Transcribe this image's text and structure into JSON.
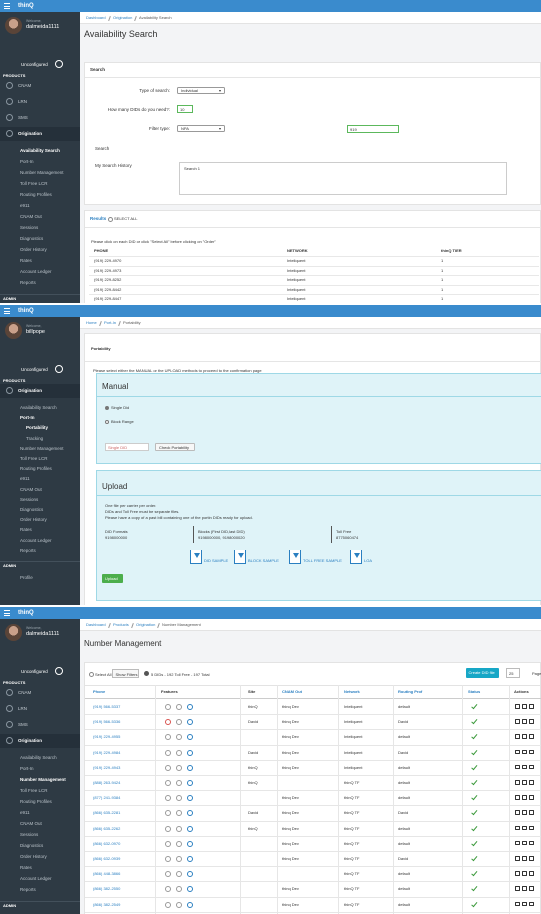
{
  "panels": [
    {
      "topbar": {
        "brand": "thinQ"
      },
      "sidebar": {
        "welcome": "Welcome,",
        "user": "dalmeida1111",
        "status": "Unconfigured",
        "section": "PRODUCTS",
        "menu": [
          "CNAM",
          "LRN",
          "SMS",
          "Origination"
        ],
        "submenu": [
          {
            "label": "Availability Search"
          },
          {
            "label": "Port-In"
          },
          {
            "label": "Number Management"
          },
          {
            "label": "Toll Free LCR"
          },
          {
            "label": "Routing Profiles"
          },
          {
            "label": "e911"
          },
          {
            "label": "CNAM Out"
          },
          {
            "label": "Sessions"
          },
          {
            "label": "Diagnostics"
          },
          {
            "label": "Order History"
          },
          {
            "label": "Rates"
          },
          {
            "label": "Account Ledger"
          },
          {
            "label": "Reports"
          }
        ],
        "admin": "ADMIN"
      },
      "breadcrumb": [
        "Dashboard",
        "Origination",
        "Availability Search"
      ],
      "title": "Availability Search",
      "search": {
        "header": "Search",
        "type_label": "Type of search:",
        "type_value": "Individual",
        "count_label": "How many DIDs do you need?:",
        "count_value": "10",
        "filter_label": "Filter type:",
        "filter_value": "NPA",
        "filter_input": "919",
        "search_label": "Search",
        "history_label": "My Search History",
        "history": [
          "Search 1"
        ]
      },
      "results": {
        "header": "Results",
        "select_all": "SELECT ALL",
        "instruction": "Please click on each DID or click \"Select All\" before clicking on \"Order\"",
        "columns": [
          "PHONE",
          "NETWORK",
          "thinQ TIER"
        ],
        "rows": [
          [
            "(919) 229-4970",
            "Inteliquent",
            "1"
          ],
          [
            "(919) 229-4973",
            "Inteliquent",
            "1"
          ],
          [
            "(919) 229-8252",
            "Inteliquent",
            "1"
          ],
          [
            "(919) 229-8442",
            "Inteliquent",
            "1"
          ],
          [
            "(919) 229-8447",
            "Inteliquent",
            "1"
          ]
        ]
      }
    },
    {
      "topbar": {
        "brand": "thinQ"
      },
      "sidebar": {
        "welcome": "Welcome,",
        "user": "billpope",
        "status": "Unconfigured",
        "section": "PRODUCTS",
        "menu": [
          "Origination"
        ],
        "submenu": [
          {
            "label": "Availability Search"
          },
          {
            "label": "Port-In",
            "items": [
              "Portability",
              "Tracking"
            ]
          },
          {
            "label": "Number Management"
          },
          {
            "label": "Toll Free LCR"
          },
          {
            "label": "Routing Profiles"
          },
          {
            "label": "e911"
          },
          {
            "label": "CNAM Out"
          },
          {
            "label": "Sessions"
          },
          {
            "label": "Diagnostics"
          },
          {
            "label": "Order History"
          },
          {
            "label": "Rates"
          },
          {
            "label": "Account Ledger"
          },
          {
            "label": "Reports"
          }
        ],
        "admin": "ADMIN",
        "profile": "Profile"
      },
      "breadcrumb": [
        "Home",
        "Port-In",
        "Portability"
      ],
      "portability": {
        "header": "Portability",
        "instruction": "Please select either the MANUAL or the UPLOAD methods to proceed to the confirmation page",
        "manual": {
          "title": "Manual",
          "options": [
            "Single Did",
            "Block Range"
          ],
          "placeholder": "Single DID",
          "button": "Check Portability"
        },
        "upload": {
          "title": "Upload",
          "notes": [
            "One file per carrier per order.",
            "DIDs and Toll Free must be separate files.",
            "Please have a copy of a past bill containing one of the portin DIDs ready for upload."
          ],
          "formats": [
            {
              "label": "DID Formats",
              "example": "9198000000"
            },
            {
              "label": "Blocks (First DID,last DID)",
              "example": "9198000000, 9198000020"
            },
            {
              "label": "Toll Free",
              "example": "8775060474"
            }
          ],
          "downloads": [
            "DID SAMPLE",
            "BLOCK SAMPLE",
            "TOLL FREE SAMPLE",
            "LOA"
          ],
          "button": "Upload"
        }
      }
    },
    {
      "topbar": {
        "brand": "thinQ"
      },
      "sidebar": {
        "welcome": "Welcome,",
        "user": "dalmeida1111",
        "status": "Unconfigured",
        "section": "PRODUCTS",
        "menu": [
          "CNAM",
          "LRN",
          "SMS",
          "Origination"
        ],
        "submenu": [
          {
            "label": "Availability Search"
          },
          {
            "label": "Port-In"
          },
          {
            "label": "Number Management"
          },
          {
            "label": "Toll Free LCR"
          },
          {
            "label": "Routing Profiles"
          },
          {
            "label": "e911"
          },
          {
            "label": "CNAM Out"
          },
          {
            "label": "Sessions"
          },
          {
            "label": "Diagnostics"
          },
          {
            "label": "Order History"
          },
          {
            "label": "Rates"
          },
          {
            "label": "Account Ledger"
          },
          {
            "label": "Reports"
          }
        ],
        "admin": "ADMIN"
      },
      "breadcrumb": [
        "Dashboard",
        "Products",
        "Origination",
        "Number Management"
      ],
      "title": "Number Management",
      "toolbar": {
        "select_all": "Select All",
        "filters": "Show Filters",
        "summary": "5 DIDs - 192 Toll Free - 197 Total",
        "create": "Create DID file",
        "per_page": "25",
        "page": "Page"
      },
      "table": {
        "columns": [
          "Phone",
          "Features",
          "Site",
          "CNAM Out",
          "Network",
          "Routing Prof",
          "Status",
          "Actions"
        ],
        "rows": [
          {
            "phone": "(919) 566-5337",
            "site": "thinQ",
            "cnam_out": "thinq Dev",
            "network": "Inteliquent",
            "routing": "default"
          },
          {
            "phone": "(919) 566-5336",
            "site": "David",
            "cnam_out": "thinq Dev",
            "network": "Inteliquent",
            "routing": "David"
          },
          {
            "phone": "(919) 229-4955",
            "site": null,
            "cnam_out": "thinq Dev",
            "network": "Inteliquent",
            "routing": "default"
          },
          {
            "phone": "(919) 229-4984",
            "site": "David",
            "cnam_out": "thinq Dev",
            "network": "Inteliquent",
            "routing": "David"
          },
          {
            "phone": "(919) 229-4943",
            "site": "thinQ",
            "cnam_out": "thinq Dev",
            "network": "Inteliquent",
            "routing": "default"
          },
          {
            "phone": "(888) 263-9424",
            "site": "thinQ",
            "cnam_out": null,
            "network": "thinQ TF",
            "routing": "default"
          },
          {
            "phone": "(877) 241-9384",
            "site": null,
            "cnam_out": "thinq Dev",
            "network": "thinQ TF",
            "routing": "default"
          },
          {
            "phone": "(866) 635-2281",
            "site": "David",
            "cnam_out": "thinq Dev",
            "network": "thinQ TF",
            "routing": "David"
          },
          {
            "phone": "(866) 635-2262",
            "site": "thinQ",
            "cnam_out": "thinq Dev",
            "network": "thinQ TF",
            "routing": "default"
          },
          {
            "phone": "(866) 632-0970",
            "site": null,
            "cnam_out": "thinq Dev",
            "network": "thinQ TF",
            "routing": "default"
          },
          {
            "phone": "(866) 632-0939",
            "site": null,
            "cnam_out": "thinq Dev",
            "network": "thinQ TF",
            "routing": "David"
          },
          {
            "phone": "(866) 448-3866",
            "site": null,
            "cnam_out": null,
            "network": "thinQ TF",
            "routing": "default"
          },
          {
            "phone": "(866) 382-2550",
            "site": null,
            "cnam_out": "thinq Dev",
            "network": "thinQ TF",
            "routing": "default"
          },
          {
            "phone": "(866) 382-2549",
            "site": null,
            "cnam_out": "thinq Dev",
            "network": "thinQ TF",
            "routing": "default"
          }
        ]
      }
    }
  ]
}
